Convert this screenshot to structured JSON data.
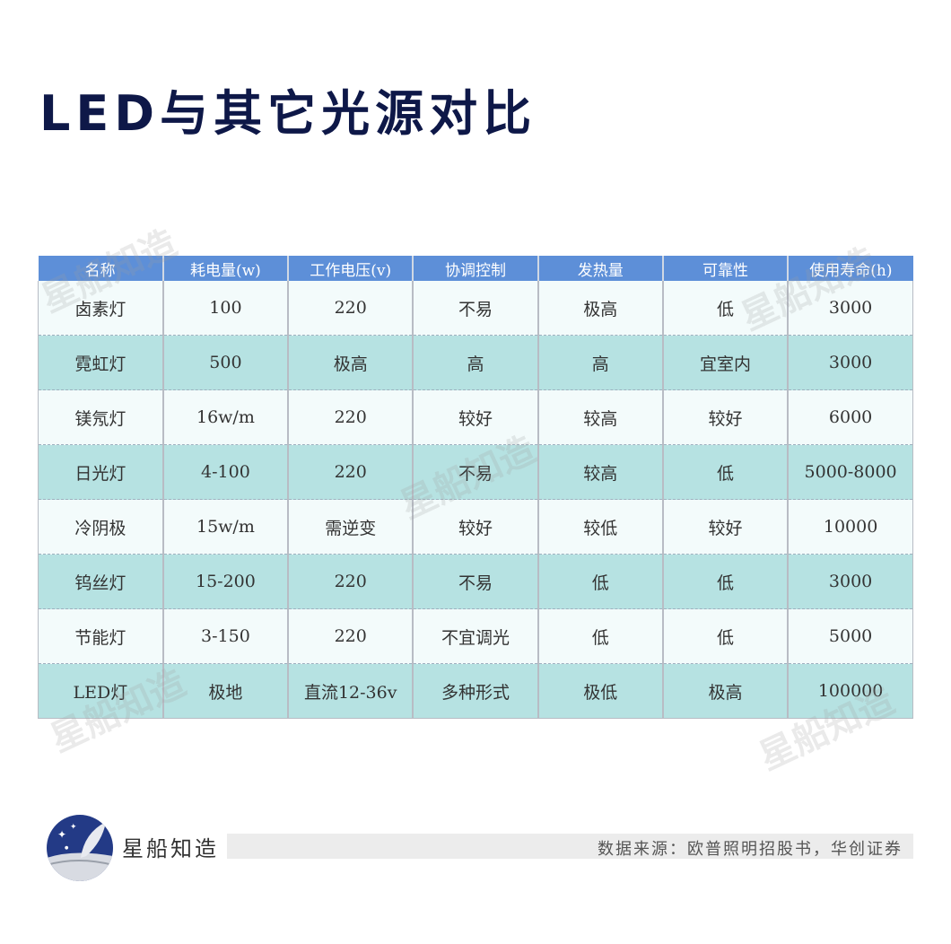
{
  "title": "LED与其它光源对比",
  "table": {
    "headers": [
      "名称",
      "耗电量(w)",
      "工作电压(v)",
      "协调控制",
      "发热量",
      "可靠性",
      "使用寿命(h)"
    ],
    "rows": [
      [
        "卤素灯",
        "100",
        "220",
        "不易",
        "极高",
        "低",
        "3000"
      ],
      [
        "霓虹灯",
        "500",
        "极高",
        "高",
        "高",
        "宜室内",
        "3000"
      ],
      [
        "镁氖灯",
        "16w/m",
        "220",
        "较好",
        "较高",
        "较好",
        "6000"
      ],
      [
        "日光灯",
        "4-100",
        "220",
        "不易",
        "较高",
        "低",
        "5000-8000"
      ],
      [
        "冷阴极",
        "15w/m",
        "需逆变",
        "较好",
        "较低",
        "较好",
        "10000"
      ],
      [
        "钨丝灯",
        "15-200",
        "220",
        "不易",
        "低",
        "低",
        "3000"
      ],
      [
        "节能灯",
        "3-150",
        "220",
        "不宜调光",
        "低",
        "低",
        "5000"
      ],
      [
        "LED灯",
        "极地",
        "直流12-36v",
        "多种形式",
        "极低",
        "极高",
        "100000"
      ]
    ]
  },
  "watermark": "星船知造",
  "footer": {
    "brand": "星船知造",
    "source": "数据来源：欧普照明招股书，华创证券"
  },
  "colors": {
    "header": "#5d8fd8",
    "row_alt": "#b6e2e2",
    "title": "#0e1848"
  }
}
